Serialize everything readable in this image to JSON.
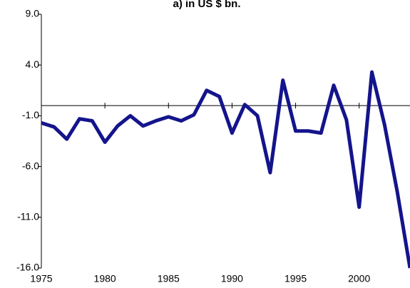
{
  "chart_data": {
    "type": "line",
    "title": "a) in US $ bn.",
    "x": [
      1975,
      1976,
      1977,
      1978,
      1979,
      1980,
      1981,
      1982,
      1983,
      1984,
      1985,
      1986,
      1987,
      1988,
      1989,
      1990,
      1991,
      1992,
      1993,
      1994,
      1995,
      1996,
      1997,
      1998,
      1999,
      2000,
      2001,
      2002,
      2003,
      2004
    ],
    "series": [
      {
        "color": "#14148c",
        "values": [
          -1.7,
          -2.1,
          -3.3,
          -1.3,
          -1.5,
          -3.6,
          -2.0,
          -1.0,
          -2.0,
          -1.5,
          -1.1,
          -1.5,
          -0.9,
          1.5,
          0.9,
          -2.7,
          0.1,
          -1.0,
          -6.6,
          2.5,
          -2.5,
          -2.5,
          -2.7,
          2.0,
          -1.4,
          -10.0,
          3.3,
          -1.9,
          -8.5,
          -16.0
        ]
      }
    ],
    "xlim": [
      1975,
      2004
    ],
    "xticks": [
      1975,
      1980,
      1985,
      1990,
      1995,
      2000
    ],
    "ylim": [
      -16,
      9
    ],
    "yticks": [
      {
        "value": 9,
        "label": "9.0"
      },
      {
        "value": 4,
        "label": "4.0"
      },
      {
        "value": -1,
        "label": "-1.0"
      },
      {
        "value": -6,
        "label": "-6.0"
      },
      {
        "value": -11,
        "label": "-11.0"
      },
      {
        "value": -16,
        "label": "-16.0"
      }
    ]
  }
}
